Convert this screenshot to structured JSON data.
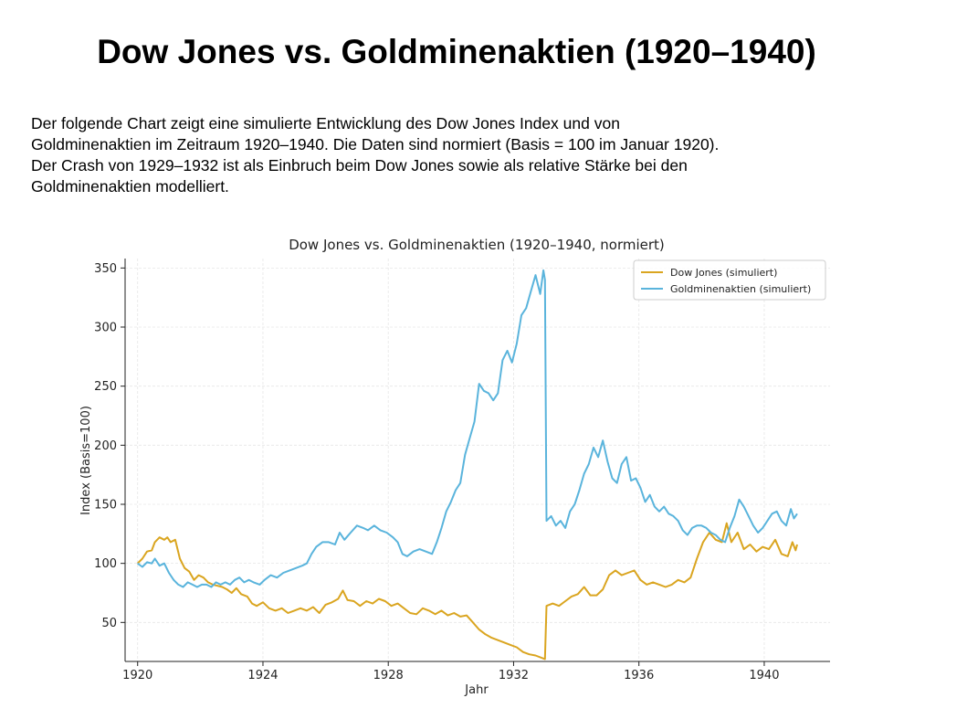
{
  "page": {
    "title": "Dow Jones vs. Goldminenaktien (1920–1940)",
    "intro_lines": [
      "Der folgende Chart zeigt eine simulierte Entwicklung des Dow Jones Index und von",
      "Goldminenaktien im Zeitraum 1920–1940. Die Daten sind normiert (Basis = 100 im Januar 1920).",
      "Der Crash von 1929–1932 ist als Einbruch beim Dow Jones sowie als relative Stärke bei den",
      "Goldminenaktien modelliert."
    ]
  },
  "chart_data": {
    "type": "line",
    "title": "Dow Jones vs. Goldminenaktien (1920–1940, normiert)",
    "xlabel": "Jahr",
    "ylabel": "Index (Basis=100)",
    "xlim": [
      1919.6,
      1942.1
    ],
    "ylim": [
      17,
      358
    ],
    "xticks": [
      1920,
      1924,
      1928,
      1932,
      1936,
      1940
    ],
    "yticks": [
      50,
      100,
      150,
      200,
      250,
      300,
      350
    ],
    "grid": true,
    "legend_position": "top-right",
    "series": [
      {
        "name": "Dow Jones (simuliert)",
        "color": "#DAA520",
        "points": [
          [
            1920.0,
            100
          ],
          [
            1920.15,
            104
          ],
          [
            1920.3,
            110
          ],
          [
            1920.45,
            111
          ],
          [
            1920.55,
            118
          ],
          [
            1920.7,
            122
          ],
          [
            1920.85,
            120
          ],
          [
            1920.95,
            122
          ],
          [
            1921.05,
            118
          ],
          [
            1921.2,
            120
          ],
          [
            1921.35,
            104
          ],
          [
            1921.5,
            96
          ],
          [
            1921.65,
            93
          ],
          [
            1921.8,
            86
          ],
          [
            1921.95,
            90
          ],
          [
            1922.1,
            88
          ],
          [
            1922.25,
            84
          ],
          [
            1922.4,
            82
          ],
          [
            1922.55,
            81
          ],
          [
            1922.7,
            80
          ],
          [
            1922.85,
            78
          ],
          [
            1923.0,
            75
          ],
          [
            1923.15,
            79
          ],
          [
            1923.3,
            74
          ],
          [
            1923.5,
            72
          ],
          [
            1923.65,
            66
          ],
          [
            1923.8,
            64
          ],
          [
            1924.0,
            67
          ],
          [
            1924.2,
            62
          ],
          [
            1924.4,
            60
          ],
          [
            1924.6,
            62
          ],
          [
            1924.8,
            58
          ],
          [
            1925.0,
            60
          ],
          [
            1925.2,
            62
          ],
          [
            1925.4,
            60
          ],
          [
            1925.6,
            63
          ],
          [
            1925.8,
            58
          ],
          [
            1926.0,
            65
          ],
          [
            1926.2,
            67
          ],
          [
            1926.4,
            70
          ],
          [
            1926.55,
            77
          ],
          [
            1926.7,
            69
          ],
          [
            1926.9,
            68
          ],
          [
            1927.1,
            64
          ],
          [
            1927.3,
            68
          ],
          [
            1927.5,
            66
          ],
          [
            1927.7,
            70
          ],
          [
            1927.9,
            68
          ],
          [
            1928.1,
            64
          ],
          [
            1928.3,
            66
          ],
          [
            1928.5,
            62
          ],
          [
            1928.7,
            58
          ],
          [
            1928.9,
            57
          ],
          [
            1929.1,
            62
          ],
          [
            1929.3,
            60
          ],
          [
            1929.5,
            57
          ],
          [
            1929.7,
            60
          ],
          [
            1929.9,
            56
          ],
          [
            1930.1,
            58
          ],
          [
            1930.3,
            55
          ],
          [
            1930.5,
            56
          ],
          [
            1930.7,
            50
          ],
          [
            1930.9,
            44
          ],
          [
            1931.1,
            40
          ],
          [
            1931.3,
            37
          ],
          [
            1931.5,
            35
          ],
          [
            1931.7,
            33
          ],
          [
            1931.9,
            31
          ],
          [
            1932.1,
            29
          ],
          [
            1932.3,
            25
          ],
          [
            1932.5,
            23
          ],
          [
            1932.7,
            22
          ],
          [
            1933.0,
            19
          ],
          [
            1933.05,
            64
          ],
          [
            1933.25,
            66
          ],
          [
            1933.45,
            64
          ],
          [
            1933.65,
            68
          ],
          [
            1933.85,
            72
          ],
          [
            1934.05,
            74
          ],
          [
            1934.25,
            80
          ],
          [
            1934.45,
            73
          ],
          [
            1934.65,
            73
          ],
          [
            1934.85,
            78
          ],
          [
            1935.05,
            90
          ],
          [
            1935.25,
            94
          ],
          [
            1935.45,
            90
          ],
          [
            1935.65,
            92
          ],
          [
            1935.85,
            94
          ],
          [
            1936.05,
            86
          ],
          [
            1936.25,
            82
          ],
          [
            1936.45,
            84
          ],
          [
            1936.65,
            82
          ],
          [
            1936.85,
            80
          ],
          [
            1937.05,
            82
          ],
          [
            1937.25,
            86
          ],
          [
            1937.45,
            84
          ],
          [
            1937.65,
            88
          ],
          [
            1937.85,
            104
          ],
          [
            1938.05,
            118
          ],
          [
            1938.25,
            126
          ],
          [
            1938.45,
            120
          ],
          [
            1938.65,
            118
          ],
          [
            1938.8,
            134
          ],
          [
            1938.95,
            118
          ],
          [
            1939.15,
            126
          ],
          [
            1939.35,
            112
          ],
          [
            1939.55,
            116
          ],
          [
            1939.75,
            110
          ],
          [
            1939.95,
            114
          ],
          [
            1940.15,
            112
          ],
          [
            1940.35,
            120
          ],
          [
            1940.55,
            108
          ],
          [
            1940.75,
            106
          ],
          [
            1940.9,
            118
          ],
          [
            1941.0,
            111
          ],
          [
            1941.05,
            116
          ]
        ]
      },
      {
        "name": "Goldminenaktien (simuliert)",
        "color": "#5AB4DC",
        "points": [
          [
            1920.0,
            100
          ],
          [
            1920.15,
            97
          ],
          [
            1920.3,
            101
          ],
          [
            1920.45,
            100
          ],
          [
            1920.55,
            104
          ],
          [
            1920.7,
            98
          ],
          [
            1920.85,
            100
          ],
          [
            1921.0,
            92
          ],
          [
            1921.15,
            86
          ],
          [
            1921.3,
            82
          ],
          [
            1921.45,
            80
          ],
          [
            1921.6,
            84
          ],
          [
            1921.75,
            82
          ],
          [
            1921.9,
            80
          ],
          [
            1922.05,
            82
          ],
          [
            1922.2,
            82
          ],
          [
            1922.35,
            80
          ],
          [
            1922.5,
            84
          ],
          [
            1922.65,
            82
          ],
          [
            1922.8,
            84
          ],
          [
            1922.95,
            82
          ],
          [
            1923.1,
            86
          ],
          [
            1923.25,
            88
          ],
          [
            1923.4,
            84
          ],
          [
            1923.55,
            86
          ],
          [
            1923.7,
            84
          ],
          [
            1923.9,
            82
          ],
          [
            1924.05,
            86
          ],
          [
            1924.25,
            90
          ],
          [
            1924.45,
            88
          ],
          [
            1924.65,
            92
          ],
          [
            1924.85,
            94
          ],
          [
            1925.05,
            96
          ],
          [
            1925.25,
            98
          ],
          [
            1925.4,
            100
          ],
          [
            1925.55,
            108
          ],
          [
            1925.7,
            114
          ],
          [
            1925.9,
            118
          ],
          [
            1926.1,
            118
          ],
          [
            1926.3,
            116
          ],
          [
            1926.45,
            126
          ],
          [
            1926.6,
            120
          ],
          [
            1926.8,
            126
          ],
          [
            1927.0,
            132
          ],
          [
            1927.2,
            130
          ],
          [
            1927.35,
            128
          ],
          [
            1927.55,
            132
          ],
          [
            1927.75,
            128
          ],
          [
            1927.95,
            126
          ],
          [
            1928.15,
            122
          ],
          [
            1928.3,
            118
          ],
          [
            1928.45,
            108
          ],
          [
            1928.6,
            106
          ],
          [
            1928.8,
            110
          ],
          [
            1929.0,
            112
          ],
          [
            1929.2,
            110
          ],
          [
            1929.4,
            108
          ],
          [
            1929.55,
            118
          ],
          [
            1929.7,
            130
          ],
          [
            1929.85,
            144
          ],
          [
            1930.0,
            152
          ],
          [
            1930.15,
            162
          ],
          [
            1930.3,
            168
          ],
          [
            1930.45,
            192
          ],
          [
            1930.6,
            206
          ],
          [
            1930.75,
            220
          ],
          [
            1930.9,
            252
          ],
          [
            1931.05,
            246
          ],
          [
            1931.2,
            244
          ],
          [
            1931.35,
            238
          ],
          [
            1931.5,
            244
          ],
          [
            1931.65,
            272
          ],
          [
            1931.8,
            280
          ],
          [
            1931.95,
            270
          ],
          [
            1932.1,
            286
          ],
          [
            1932.25,
            310
          ],
          [
            1932.4,
            316
          ],
          [
            1932.55,
            330
          ],
          [
            1932.7,
            344
          ],
          [
            1932.85,
            328
          ],
          [
            1932.95,
            348
          ],
          [
            1933.0,
            340
          ],
          [
            1933.05,
            136
          ],
          [
            1933.2,
            140
          ],
          [
            1933.35,
            132
          ],
          [
            1933.5,
            136
          ],
          [
            1933.65,
            130
          ],
          [
            1933.8,
            144
          ],
          [
            1933.95,
            150
          ],
          [
            1934.1,
            162
          ],
          [
            1934.25,
            176
          ],
          [
            1934.4,
            184
          ],
          [
            1934.55,
            198
          ],
          [
            1934.7,
            190
          ],
          [
            1934.85,
            204
          ],
          [
            1935.0,
            186
          ],
          [
            1935.15,
            172
          ],
          [
            1935.3,
            168
          ],
          [
            1935.45,
            184
          ],
          [
            1935.6,
            190
          ],
          [
            1935.75,
            170
          ],
          [
            1935.9,
            172
          ],
          [
            1936.05,
            164
          ],
          [
            1936.2,
            152
          ],
          [
            1936.35,
            158
          ],
          [
            1936.5,
            148
          ],
          [
            1936.65,
            144
          ],
          [
            1936.8,
            148
          ],
          [
            1936.95,
            142
          ],
          [
            1937.1,
            140
          ],
          [
            1937.25,
            136
          ],
          [
            1937.4,
            128
          ],
          [
            1937.55,
            124
          ],
          [
            1937.7,
            130
          ],
          [
            1937.85,
            132
          ],
          [
            1938.0,
            132
          ],
          [
            1938.15,
            130
          ],
          [
            1938.3,
            126
          ],
          [
            1938.45,
            124
          ],
          [
            1938.6,
            120
          ],
          [
            1938.75,
            118
          ],
          [
            1938.9,
            130
          ],
          [
            1939.05,
            140
          ],
          [
            1939.2,
            154
          ],
          [
            1939.35,
            148
          ],
          [
            1939.5,
            140
          ],
          [
            1939.65,
            132
          ],
          [
            1939.8,
            126
          ],
          [
            1939.95,
            130
          ],
          [
            1940.1,
            136
          ],
          [
            1940.25,
            142
          ],
          [
            1940.4,
            144
          ],
          [
            1940.55,
            136
          ],
          [
            1940.7,
            132
          ],
          [
            1940.85,
            146
          ],
          [
            1940.95,
            138
          ],
          [
            1941.05,
            142
          ]
        ]
      }
    ]
  }
}
